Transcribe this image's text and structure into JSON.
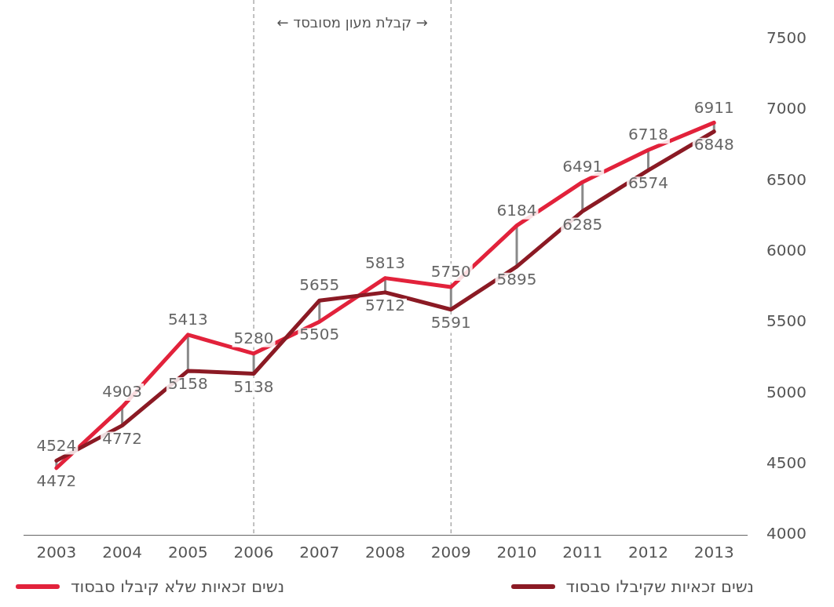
{
  "chart_data": {
    "type": "line",
    "categories": [
      "2003",
      "2004",
      "2005",
      "2006",
      "2007",
      "2008",
      "2009",
      "2010",
      "2011",
      "2012",
      "2013"
    ],
    "series": [
      {
        "name": "נשים זכאיות שקיבלו סבסוד",
        "color": "#8b1a24",
        "values": [
          4524,
          4772,
          5158,
          5138,
          5655,
          5712,
          5591,
          5895,
          6285,
          6574,
          6848
        ]
      },
      {
        "name": "נשים זכאיות שלא קיבלו סבסוד",
        "color": "#e2223b",
        "values": [
          4472,
          4903,
          5413,
          5280,
          5505,
          5813,
          5750,
          6184,
          6491,
          6718,
          6911
        ]
      }
    ],
    "ylim": [
      4000,
      7500
    ],
    "yticks": [
      4000,
      4500,
      5000,
      5500,
      6000,
      6500,
      7000,
      7500
    ],
    "grid": false,
    "legend": "bottom",
    "data_labels": true,
    "marker": "none",
    "line_style": "solid",
    "ref_lines": [
      {
        "axis": "x",
        "value": "2006",
        "line_style": "dashed",
        "color": "#999999"
      },
      {
        "axis": "x",
        "value": "2009",
        "line_style": "dashed",
        "color": "#999999"
      }
    ],
    "annotations": [
      "→ קבלת מעון מסובסד ←"
    ]
  }
}
